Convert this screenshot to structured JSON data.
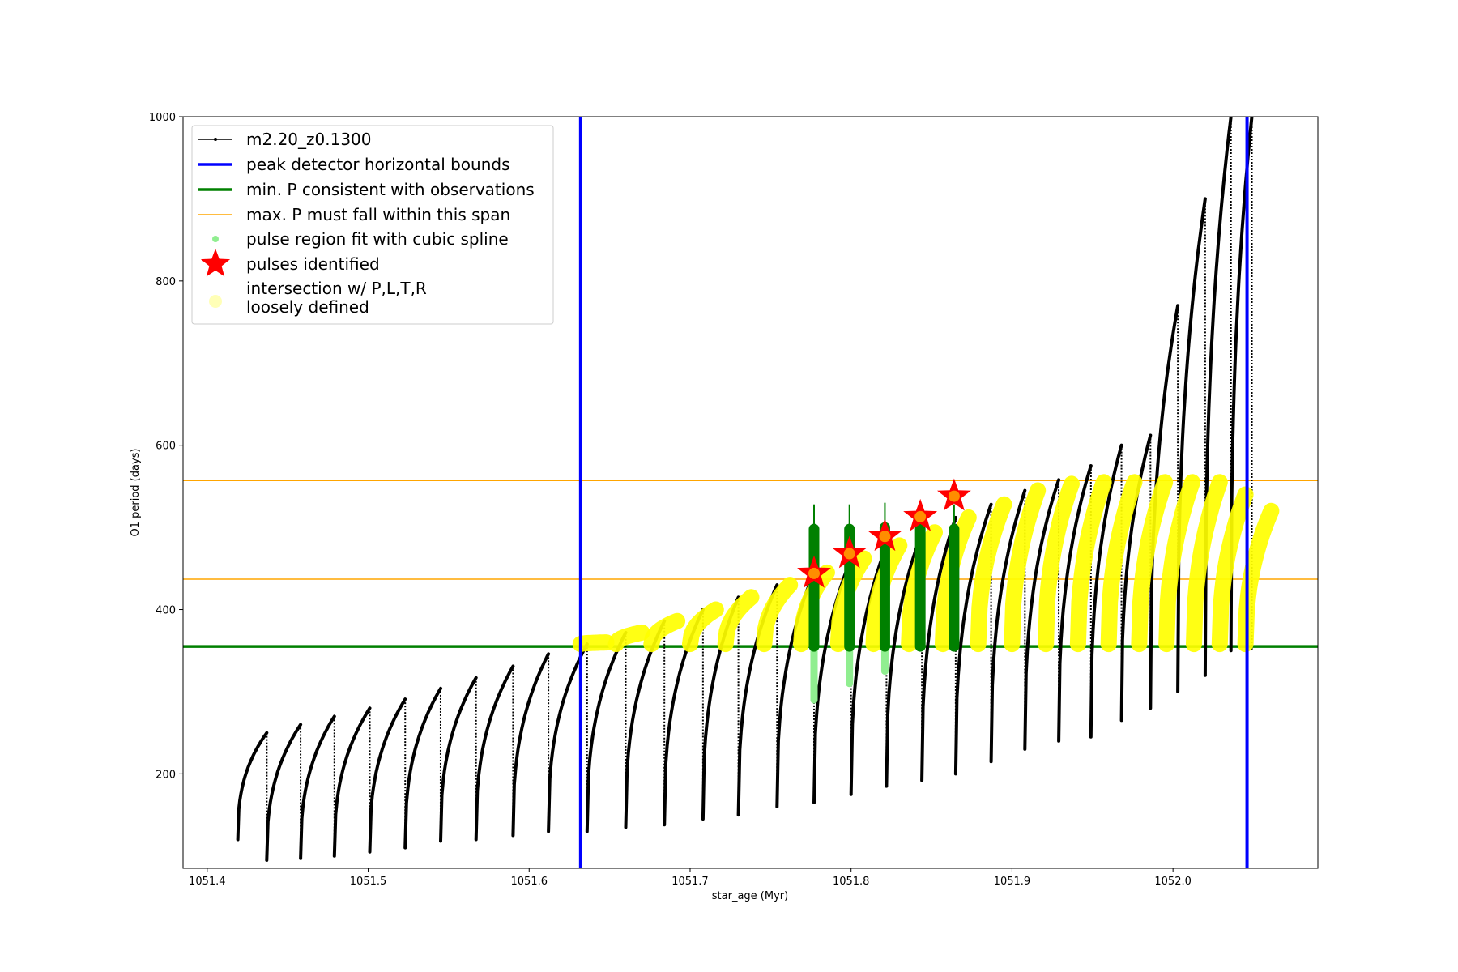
{
  "chart_data": {
    "type": "scatter",
    "title": "",
    "xlabel": "star_age (Myr)",
    "ylabel": "O1 period (days)",
    "xlim": [
      1051.385,
      1052.09
    ],
    "ylim": [
      85,
      1000
    ],
    "xticks": [
      1051.4,
      1051.5,
      1051.6,
      1051.7,
      1051.8,
      1051.9,
      1052.0
    ],
    "xtick_labels": [
      "1051.4",
      "1051.5",
      "1051.6",
      "1051.7",
      "1051.8",
      "1051.9",
      "1052.0"
    ],
    "yticks": [
      200,
      400,
      600,
      800,
      1000
    ],
    "ytick_labels": [
      "200",
      "400",
      "600",
      "800",
      "1000"
    ],
    "grid": false,
    "legend_position": "top-left",
    "legend": [
      {
        "key": "track",
        "label": "m2.20_z0.1300"
      },
      {
        "key": "blue",
        "label": "peak detector horizontal bounds"
      },
      {
        "key": "green",
        "label": "min. P consistent with observations"
      },
      {
        "key": "orange",
        "label": "max. P must fall within this span"
      },
      {
        "key": "spline",
        "label": "pulse region fit with cubic spline"
      },
      {
        "key": "star",
        "label": "pulses identified"
      },
      {
        "key": "yellow",
        "label": "intersection w/ P,L,T,R",
        "label2": "loosely defined"
      }
    ],
    "colors": {
      "track": "#000000",
      "blue": "#0000ff",
      "green": "#008000",
      "orange": "#ffa500",
      "spline": "#90ee90",
      "star": "#ff0000",
      "yellow": "#ffff00"
    },
    "vertical_bounds": [
      1051.632,
      1052.046
    ],
    "min_period": 355,
    "max_period_span": [
      437,
      557
    ],
    "pulses_identified": [
      {
        "x": 1051.777,
        "y": 444
      },
      {
        "x": 1051.799,
        "y": 468
      },
      {
        "x": 1051.821,
        "y": 489
      },
      {
        "x": 1051.843,
        "y": 513
      },
      {
        "x": 1051.864,
        "y": 538
      }
    ],
    "cycles": [
      {
        "x0": 1051.419,
        "x1": 1051.437,
        "ymin": 120,
        "ymax": 250
      },
      {
        "x0": 1051.437,
        "x1": 1051.458,
        "ymin": 95,
        "ymax": 260
      },
      {
        "x0": 1051.458,
        "x1": 1051.479,
        "ymin": 97,
        "ymax": 270
      },
      {
        "x0": 1051.479,
        "x1": 1051.501,
        "ymin": 100,
        "ymax": 280
      },
      {
        "x0": 1051.501,
        "x1": 1051.523,
        "ymin": 105,
        "ymax": 291
      },
      {
        "x0": 1051.523,
        "x1": 1051.545,
        "ymin": 110,
        "ymax": 304
      },
      {
        "x0": 1051.545,
        "x1": 1051.567,
        "ymin": 118,
        "ymax": 317
      },
      {
        "x0": 1051.567,
        "x1": 1051.59,
        "ymin": 120,
        "ymax": 331
      },
      {
        "x0": 1051.59,
        "x1": 1051.612,
        "ymin": 125,
        "ymax": 346
      },
      {
        "x0": 1051.612,
        "x1": 1051.636,
        "ymin": 130,
        "ymax": 358
      },
      {
        "x0": 1051.636,
        "x1": 1051.66,
        "ymin": 130,
        "ymax": 372
      },
      {
        "x0": 1051.66,
        "x1": 1051.684,
        "ymin": 135,
        "ymax": 386
      },
      {
        "x0": 1051.684,
        "x1": 1051.708,
        "ymin": 138,
        "ymax": 400
      },
      {
        "x0": 1051.708,
        "x1": 1051.73,
        "ymin": 145,
        "ymax": 415
      },
      {
        "x0": 1051.73,
        "x1": 1051.754,
        "ymin": 150,
        "ymax": 430
      },
      {
        "x0": 1051.754,
        "x1": 1051.777,
        "ymin": 160,
        "ymax": 445
      },
      {
        "x0": 1051.777,
        "x1": 1051.8,
        "ymin": 165,
        "ymax": 462
      },
      {
        "x0": 1051.8,
        "x1": 1051.822,
        "ymin": 175,
        "ymax": 478
      },
      {
        "x0": 1051.822,
        "x1": 1051.844,
        "ymin": 185,
        "ymax": 494
      },
      {
        "x0": 1051.844,
        "x1": 1051.865,
        "ymin": 192,
        "ymax": 512
      },
      {
        "x0": 1051.865,
        "x1": 1051.887,
        "ymin": 200,
        "ymax": 528
      },
      {
        "x0": 1051.887,
        "x1": 1051.908,
        "ymin": 215,
        "ymax": 545
      },
      {
        "x0": 1051.908,
        "x1": 1051.929,
        "ymin": 230,
        "ymax": 558
      },
      {
        "x0": 1051.929,
        "x1": 1051.949,
        "ymin": 240,
        "ymax": 575
      },
      {
        "x0": 1051.949,
        "x1": 1051.968,
        "ymin": 245,
        "ymax": 600
      },
      {
        "x0": 1051.968,
        "x1": 1051.986,
        "ymin": 265,
        "ymax": 612
      },
      {
        "x0": 1051.986,
        "x1": 1052.003,
        "ymin": 280,
        "ymax": 770
      },
      {
        "x0": 1052.003,
        "x1": 1052.02,
        "ymin": 300,
        "ymax": 900
      },
      {
        "x0": 1052.02,
        "x1": 1052.036,
        "ymin": 320,
        "ymax": 1000
      },
      {
        "x0": 1052.036,
        "x1": 1052.049,
        "ymin": 350,
        "ymax": 1000
      }
    ],
    "yellow_cycles": [
      {
        "x": 1051.632,
        "ymax": 360
      },
      {
        "x": 1051.654,
        "ymax": 372
      },
      {
        "x": 1051.676,
        "ymax": 386
      },
      {
        "x": 1051.7,
        "ymax": 400
      },
      {
        "x": 1051.722,
        "ymax": 415
      },
      {
        "x": 1051.746,
        "ymax": 430
      },
      {
        "x": 1051.769,
        "ymax": 445
      },
      {
        "x": 1051.792,
        "ymax": 462
      },
      {
        "x": 1051.814,
        "ymax": 478
      },
      {
        "x": 1051.836,
        "ymax": 494
      },
      {
        "x": 1051.857,
        "ymax": 512
      },
      {
        "x": 1051.879,
        "ymax": 528
      },
      {
        "x": 1051.9,
        "ymax": 545
      },
      {
        "x": 1051.921,
        "ymax": 553
      },
      {
        "x": 1051.941,
        "ymax": 555
      },
      {
        "x": 1051.96,
        "ymax": 555
      },
      {
        "x": 1051.979,
        "ymax": 555
      },
      {
        "x": 1051.996,
        "ymax": 555
      },
      {
        "x": 1052.013,
        "ymax": 555
      },
      {
        "x": 1052.029,
        "ymax": 540
      },
      {
        "x": 1052.045,
        "ymax": 520
      }
    ],
    "green_pulses": [
      {
        "x": 1051.777,
        "ymin": 355,
        "ymax": 498,
        "light_min": 290
      },
      {
        "x": 1051.799,
        "ymin": 355,
        "ymax": 498,
        "light_min": 310
      },
      {
        "x": 1051.821,
        "ymin": 355,
        "ymax": 500,
        "light_min": 325
      },
      {
        "x": 1051.843,
        "ymin": 355,
        "ymax": 498,
        "light_min": 355
      },
      {
        "x": 1051.864,
        "ymin": 355,
        "ymax": 498,
        "light_min": 355
      }
    ]
  }
}
